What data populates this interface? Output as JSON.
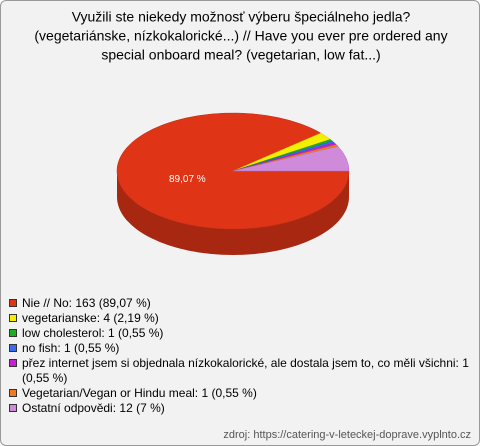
{
  "chart_data": {
    "type": "pie",
    "title": [
      "Využili ste niekedy možnosť výberu špeciálneho jedla?",
      "(vegetariánske, nízkokalorické...) // Have you ever pre ordered any",
      "special onboard meal? (vegetarian, low fat...)"
    ],
    "categories": [
      "Nie // No: 163 (89,07 %)",
      "vegetarianske: 4 (2,19 %)",
      "low cholesterol: 1 (0,55 %)",
      "no fish: 1 (0,55 %)",
      "přez internet jsem si objednala nízkokalorické, ale dostala jsem to, co měli všichni: 1 (0,55 %)",
      "Vegetarian/Vegan or Hindu meal: 1 (0,55 %)",
      "Ostatní odpovědi: 12 (7 %)"
    ],
    "values": [
      89.07,
      2.19,
      0.55,
      0.55,
      0.55,
      0.55,
      7
    ],
    "value_labels": [
      "89,07 %",
      null,
      null,
      null,
      null,
      null,
      null
    ],
    "colors": [
      "#e03417",
      "#f4ef00",
      "#1fae1f",
      "#3a6cf0",
      "#c81fd0",
      "#f07a22",
      "#cf8ad9"
    ],
    "source": "zdroj: https://catering-v-leteckej-doprave.vyplnto.cz"
  }
}
